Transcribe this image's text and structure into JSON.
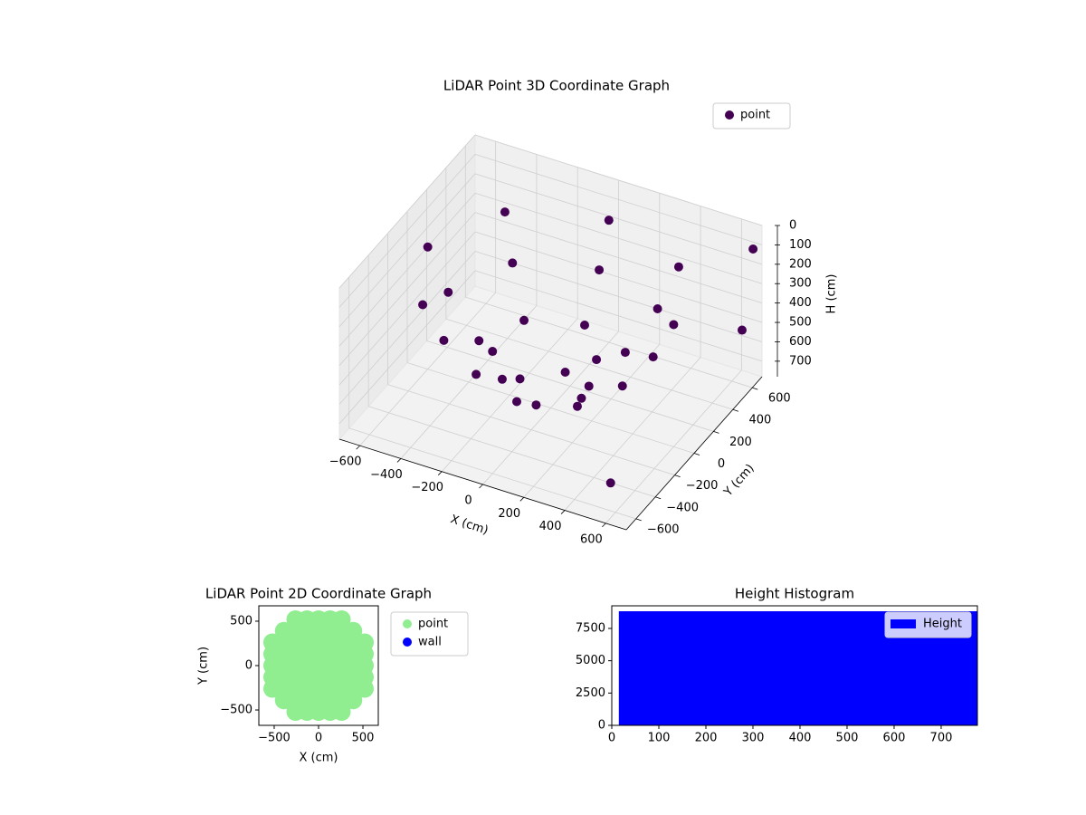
{
  "chart_data": [
    {
      "type": "scatter3d",
      "title": "LiDAR Point 3D Coordinate Graph",
      "xlabel": "X (cm)",
      "ylabel": "Y (cm)",
      "zlabel": "H (cm)",
      "xlim": [
        -700,
        700
      ],
      "ylim": [
        -700,
        700
      ],
      "zlim": [
        780,
        0
      ],
      "xticks": [
        {
          "value": -600,
          "label": "−600"
        },
        {
          "value": -400,
          "label": "−400"
        },
        {
          "value": -200,
          "label": "−200"
        },
        0,
        200,
        400,
        600
      ],
      "yticks": [
        {
          "value": -600,
          "label": "−600"
        },
        {
          "value": -400,
          "label": "−400"
        },
        {
          "value": -200,
          "label": "−200"
        },
        0,
        200,
        400,
        600
      ],
      "zticks": [
        0,
        100,
        200,
        300,
        400,
        500,
        600,
        700
      ],
      "grid": true,
      "legend": "upper right",
      "series": [
        {
          "name": "point",
          "color": "#440154",
          "x": [
            600,
            424,
            0,
            -424,
            -600,
            -424,
            0,
            424,
            500,
            354,
            0,
            -354,
            -500,
            -354,
            0,
            354,
            350,
            247,
            0,
            -247,
            -350,
            -247,
            0,
            247,
            150,
            0,
            -150,
            0,
            680,
            650,
            600
          ],
          "y": [
            0,
            424,
            600,
            424,
            0,
            -424,
            -600,
            -424,
            0,
            354,
            500,
            354,
            0,
            -354,
            -500,
            -354,
            0,
            247,
            350,
            247,
            0,
            -247,
            -350,
            -247,
            0,
            150,
            0,
            -150,
            650,
            600,
            -650
          ],
          "z": [
            150,
            150,
            150,
            150,
            150,
            150,
            150,
            150,
            350,
            350,
            350,
            350,
            350,
            350,
            350,
            350,
            550,
            550,
            550,
            550,
            550,
            550,
            550,
            550,
            680,
            680,
            680,
            680,
            100,
            500,
            600
          ]
        }
      ]
    },
    {
      "type": "scatter",
      "title": "LiDAR Point 2D Coordinate Graph",
      "xlabel": "X (cm)",
      "ylabel": "Y (cm)",
      "xlim": [
        -673,
        673
      ],
      "ylim": [
        -673,
        673
      ],
      "xticks": [
        {
          "value": -500,
          "label": "−500"
        },
        0,
        500
      ],
      "yticks": [
        {
          "value": -500,
          "label": "−500"
        },
        0,
        500
      ],
      "legend": "outside right",
      "series": [
        {
          "name": "point",
          "color": "#90ee90",
          "x": [
            -260,
            -130,
            0,
            130,
            260,
            -260,
            -130,
            0,
            130,
            260,
            -390,
            -260,
            -130,
            0,
            130,
            260,
            390,
            -390,
            -260,
            -130,
            0,
            130,
            260,
            390,
            -520,
            -390,
            -260,
            -130,
            0,
            130,
            260,
            390,
            520,
            -520,
            -390,
            -260,
            -130,
            0,
            130,
            260,
            390,
            520,
            -520,
            -390,
            -260,
            -130,
            0,
            130,
            260,
            390,
            520,
            -520,
            -390,
            -260,
            -130,
            0,
            130,
            260,
            390,
            520,
            -520,
            -390,
            -260,
            -130,
            0,
            130,
            260,
            390,
            520
          ],
          "y": [
            520,
            520,
            520,
            520,
            520,
            -520,
            -520,
            -520,
            -520,
            -520,
            390,
            390,
            390,
            390,
            390,
            390,
            390,
            -390,
            -390,
            -390,
            -390,
            -390,
            -390,
            -390,
            260,
            260,
            260,
            260,
            260,
            260,
            260,
            260,
            260,
            -260,
            -260,
            -260,
            -260,
            -260,
            -260,
            -260,
            -260,
            -260,
            130,
            130,
            130,
            130,
            130,
            130,
            130,
            130,
            130,
            -130,
            -130,
            -130,
            -130,
            -130,
            -130,
            -130,
            -130,
            -130,
            0,
            0,
            0,
            0,
            0,
            0,
            0,
            0,
            0
          ]
        },
        {
          "name": "wall",
          "color": "#0000ff",
          "x": [],
          "y": []
        }
      ]
    },
    {
      "type": "histogram",
      "title": "Height Histogram",
      "xlim": [
        0,
        777
      ],
      "ylim": [
        0,
        9250
      ],
      "xticks": [
        0,
        100,
        200,
        300,
        400,
        500,
        600,
        700
      ],
      "yticks": [
        0,
        2500,
        5000,
        7500
      ],
      "bins": [
        15,
        780
      ],
      "legend": "upper right",
      "series": [
        {
          "name": "Height",
          "color": "#0000ff",
          "values": [
            8830
          ]
        }
      ]
    }
  ]
}
